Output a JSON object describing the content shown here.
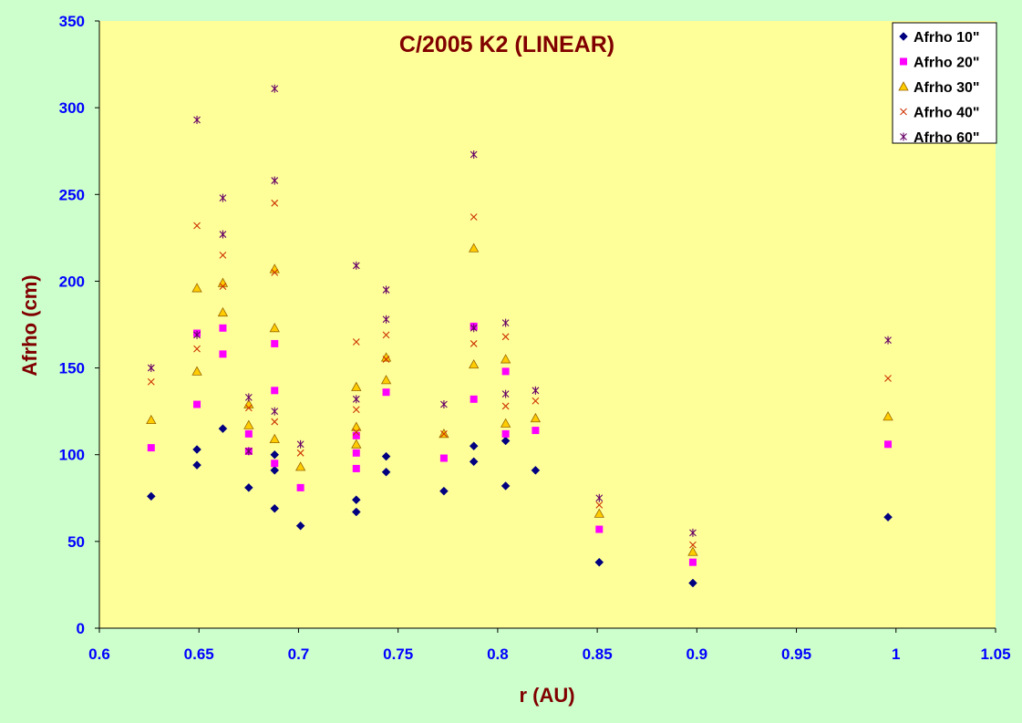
{
  "chart_data": {
    "type": "scatter",
    "title": "C/2005 K2 (LINEAR)",
    "xlabel": "r (AU)",
    "ylabel": "Afrho (cm)",
    "xlim": [
      0.6,
      1.05
    ],
    "ylim": [
      0,
      350
    ],
    "xticks": [
      "0.6",
      "0.65",
      "0.7",
      "0.75",
      "0.8",
      "0.85",
      "0.9",
      "0.95",
      "1",
      "1.05"
    ],
    "yticks": [
      "0",
      "50",
      "100",
      "150",
      "200",
      "250",
      "300",
      "350"
    ],
    "grid": false,
    "legend_position": "top-right",
    "colors": {
      "background": "#ccffcc",
      "plot_area": "#ffff99",
      "axis_text": "#0000ff",
      "title_text": "#800000"
    },
    "series": [
      {
        "name": "Afrho 10\"",
        "marker": "diamond",
        "color": "#000080",
        "points": [
          [
            0.626,
            76
          ],
          [
            0.649,
            94
          ],
          [
            0.649,
            103
          ],
          [
            0.662,
            115
          ],
          [
            0.675,
            81
          ],
          [
            0.688,
            100
          ],
          [
            0.688,
            91
          ],
          [
            0.688,
            69
          ],
          [
            0.701,
            59
          ],
          [
            0.729,
            74
          ],
          [
            0.729,
            67
          ],
          [
            0.744,
            99
          ],
          [
            0.744,
            90
          ],
          [
            0.773,
            79
          ],
          [
            0.788,
            105
          ],
          [
            0.788,
            96
          ],
          [
            0.804,
            108
          ],
          [
            0.804,
            82
          ],
          [
            0.819,
            91
          ],
          [
            0.851,
            38
          ],
          [
            0.898,
            26
          ],
          [
            0.996,
            64
          ]
        ]
      },
      {
        "name": "Afrho 20\"",
        "marker": "square",
        "color": "#ff00ff",
        "points": [
          [
            0.626,
            104
          ],
          [
            0.649,
            170
          ],
          [
            0.649,
            129
          ],
          [
            0.662,
            173
          ],
          [
            0.662,
            158
          ],
          [
            0.675,
            112
          ],
          [
            0.675,
            102
          ],
          [
            0.688,
            164
          ],
          [
            0.688,
            137
          ],
          [
            0.688,
            95
          ],
          [
            0.701,
            81
          ],
          [
            0.729,
            111
          ],
          [
            0.729,
            101
          ],
          [
            0.729,
            92
          ],
          [
            0.744,
            136
          ],
          [
            0.773,
            98
          ],
          [
            0.788,
            174
          ],
          [
            0.788,
            132
          ],
          [
            0.804,
            148
          ],
          [
            0.804,
            112
          ],
          [
            0.819,
            114
          ],
          [
            0.851,
            57
          ],
          [
            0.898,
            38
          ],
          [
            0.996,
            106
          ]
        ]
      },
      {
        "name": "Afrho 30\"",
        "marker": "triangle",
        "color": "#ffcc00",
        "points": [
          [
            0.626,
            120
          ],
          [
            0.649,
            196
          ],
          [
            0.649,
            148
          ],
          [
            0.662,
            199
          ],
          [
            0.662,
            182
          ],
          [
            0.675,
            129
          ],
          [
            0.675,
            117
          ],
          [
            0.688,
            207
          ],
          [
            0.688,
            173
          ],
          [
            0.688,
            109
          ],
          [
            0.701,
            93
          ],
          [
            0.729,
            139
          ],
          [
            0.729,
            116
          ],
          [
            0.729,
            106
          ],
          [
            0.744,
            156
          ],
          [
            0.744,
            143
          ],
          [
            0.773,
            112
          ],
          [
            0.788,
            219
          ],
          [
            0.788,
            152
          ],
          [
            0.804,
            155
          ],
          [
            0.804,
            118
          ],
          [
            0.819,
            121
          ],
          [
            0.851,
            66
          ],
          [
            0.898,
            44
          ],
          [
            0.996,
            122
          ]
        ]
      },
      {
        "name": "Afrho 40\"",
        "marker": "x",
        "color": "#cc3300",
        "points": [
          [
            0.626,
            142
          ],
          [
            0.649,
            232
          ],
          [
            0.649,
            161
          ],
          [
            0.662,
            215
          ],
          [
            0.662,
            197
          ],
          [
            0.675,
            127
          ],
          [
            0.675,
            102
          ],
          [
            0.688,
            245
          ],
          [
            0.688,
            205
          ],
          [
            0.688,
            119
          ],
          [
            0.701,
            101
          ],
          [
            0.729,
            165
          ],
          [
            0.729,
            126
          ],
          [
            0.729,
            113
          ],
          [
            0.744,
            169
          ],
          [
            0.744,
            155
          ],
          [
            0.773,
            112
          ],
          [
            0.788,
            237
          ],
          [
            0.788,
            164
          ],
          [
            0.804,
            168
          ],
          [
            0.804,
            128
          ],
          [
            0.819,
            131
          ],
          [
            0.851,
            71
          ],
          [
            0.898,
            48
          ],
          [
            0.996,
            144
          ]
        ]
      },
      {
        "name": "Afrho 60\"",
        "marker": "star",
        "color": "#660066",
        "points": [
          [
            0.626,
            150
          ],
          [
            0.649,
            293
          ],
          [
            0.649,
            169
          ],
          [
            0.662,
            248
          ],
          [
            0.662,
            227
          ],
          [
            0.675,
            133
          ],
          [
            0.675,
            102
          ],
          [
            0.688,
            311
          ],
          [
            0.688,
            258
          ],
          [
            0.688,
            125
          ],
          [
            0.701,
            106
          ],
          [
            0.729,
            209
          ],
          [
            0.729,
            132
          ],
          [
            0.744,
            195
          ],
          [
            0.744,
            178
          ],
          [
            0.773,
            129
          ],
          [
            0.788,
            273
          ],
          [
            0.788,
            173
          ],
          [
            0.804,
            176
          ],
          [
            0.804,
            135
          ],
          [
            0.819,
            137
          ],
          [
            0.851,
            75
          ],
          [
            0.898,
            55
          ],
          [
            0.996,
            166
          ]
        ]
      }
    ]
  }
}
